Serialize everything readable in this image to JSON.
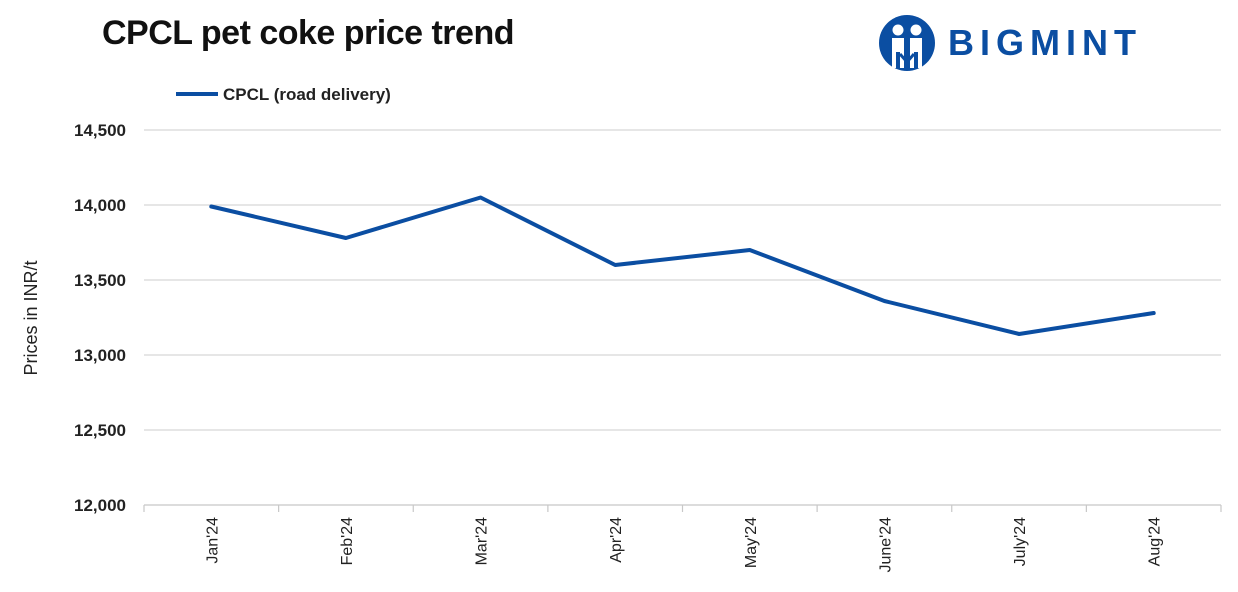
{
  "brand": {
    "name": "BIGMINT",
    "color": "#0b4ea2",
    "icon": "two-figures-circle-icon"
  },
  "chart_data": {
    "type": "line",
    "title": "CPCL pet coke price trend",
    "xlabel": "",
    "ylabel": "Prices in INR/t",
    "categories": [
      "Jan'24",
      "Feb'24",
      "Mar'24",
      "Apr'24",
      "May'24",
      "June'24",
      "July'24",
      "Aug'24"
    ],
    "series": [
      {
        "name": "CPCL (road delivery)",
        "color": "#0b4ea2",
        "values": [
          13990,
          13780,
          14050,
          13600,
          13700,
          13360,
          13140,
          13280
        ]
      }
    ],
    "ylim": [
      12000,
      14500
    ],
    "yticks": [
      "12,000",
      "12,500",
      "13,000",
      "13,500",
      "14,000",
      "14,500"
    ],
    "grid": true,
    "legend_position": "top-left"
  }
}
